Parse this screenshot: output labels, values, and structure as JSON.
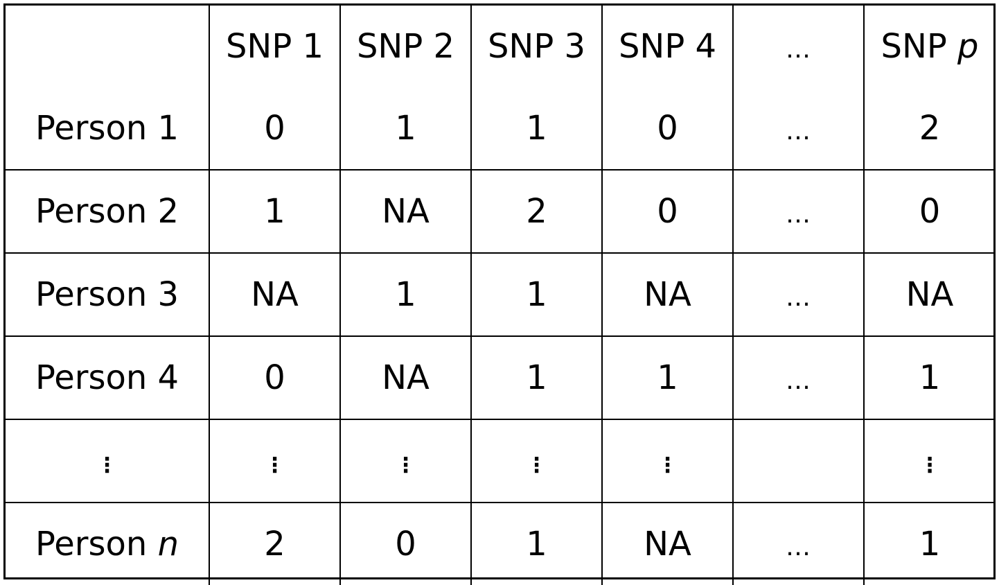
{
  "table": {
    "header": {
      "corner": "",
      "columns": [
        {
          "label": "SNP 1",
          "suffix": ""
        },
        {
          "label": "SNP 2",
          "suffix": ""
        },
        {
          "label": "SNP 3",
          "suffix": ""
        },
        {
          "label": "SNP 4",
          "suffix": ""
        },
        {
          "label": "…",
          "suffix": ""
        },
        {
          "label": "SNP ",
          "suffix": "p"
        }
      ]
    },
    "rows": [
      {
        "label": "Person 1",
        "label_suffix": "",
        "cells": [
          "0",
          "1",
          "1",
          "0",
          "…",
          "2"
        ]
      },
      {
        "label": "Person 2",
        "label_suffix": "",
        "cells": [
          "1",
          "NA",
          "2",
          "0",
          "…",
          "0"
        ]
      },
      {
        "label": "Person 3",
        "label_suffix": "",
        "cells": [
          "NA",
          "1",
          "1",
          "NA",
          "…",
          "NA"
        ]
      },
      {
        "label": "Person 4",
        "label_suffix": "",
        "cells": [
          "0",
          "NA",
          "1",
          "1",
          "…",
          "1"
        ]
      },
      {
        "label": "⋮",
        "label_suffix": "",
        "cells": [
          "⋮",
          "⋮",
          "⋮",
          "⋮",
          "",
          "⋮"
        ]
      },
      {
        "label": "Person ",
        "label_suffix": "n",
        "cells": [
          "2",
          "0",
          "1",
          "NA",
          "…",
          "1"
        ]
      }
    ]
  }
}
